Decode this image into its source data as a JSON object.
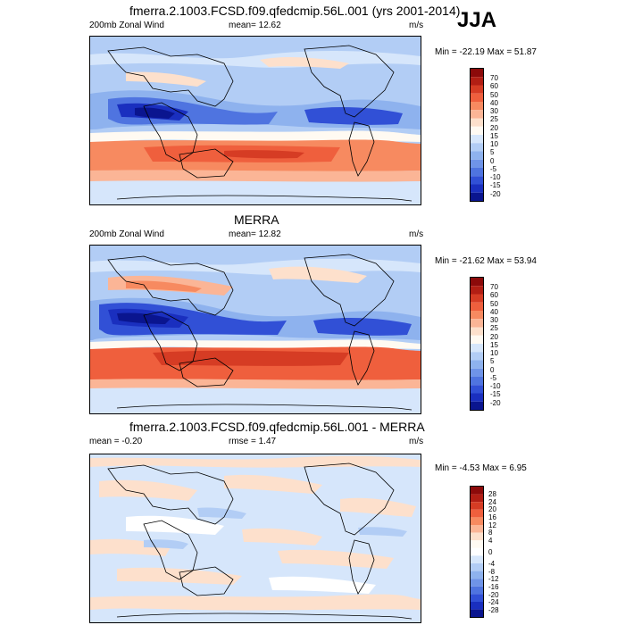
{
  "season": "JJA",
  "panels": [
    {
      "title": "fmerra.2.1003.FCSD.f09.qfedcmip.56L.001 (yrs 2001-2014)",
      "left_label": "200mb Zonal Wind",
      "center_label": "mean=  12.62",
      "units": "m/s",
      "minmax": "Min = -22.19 Max =  51.87",
      "colorbar_labels": [
        "70",
        "60",
        "50",
        "40",
        "30",
        "25",
        "20",
        "15",
        "10",
        "5",
        "0",
        "-5",
        "-10",
        "-15",
        "-20"
      ]
    },
    {
      "title": "MERRA",
      "left_label": "200mb Zonal Wind",
      "center_label": "mean=  12.82",
      "units": "m/s",
      "minmax": "Min = -21.62 Max =  53.94",
      "colorbar_labels": [
        "70",
        "60",
        "50",
        "40",
        "30",
        "25",
        "20",
        "15",
        "10",
        "5",
        "0",
        "-5",
        "-10",
        "-15",
        "-20"
      ]
    },
    {
      "title": "fmerra.2.1003.FCSD.f09.qfedcmip.56L.001 - MERRA",
      "left_label": "mean =  -0.20",
      "center_label": "rmse =   1.47",
      "units": "m/s",
      "minmax": "Min =  -4.53 Max =   6.95",
      "colorbar_labels": [
        "28",
        "24",
        "20",
        "16",
        "12",
        "8",
        "4",
        "0",
        "-4",
        "-8",
        "-12",
        "-16",
        "-20",
        "-24",
        "-28"
      ]
    }
  ],
  "colors": {
    "wind_scale": [
      "#8c0a0a",
      "#b21e14",
      "#d63c24",
      "#ef5f3d",
      "#f78a60",
      "#fbb596",
      "#fde0cc",
      "#fffaf2",
      "#d6e6fb",
      "#b2cdf5",
      "#8eb2ee",
      "#6f94e8",
      "#4f74e0",
      "#3150d6",
      "#1a2fbf",
      "#0a158f"
    ],
    "diff_scale": [
      "#8c0a0a",
      "#b21e14",
      "#d63c24",
      "#ef5f3d",
      "#f78a60",
      "#fbb596",
      "#fde0cc",
      "#fffaf2",
      "#ffffff",
      "#d6e6fb",
      "#b2cdf5",
      "#8eb2ee",
      "#6f94e8",
      "#4f74e0",
      "#3150d6",
      "#1a2fbf",
      "#0a158f"
    ]
  }
}
